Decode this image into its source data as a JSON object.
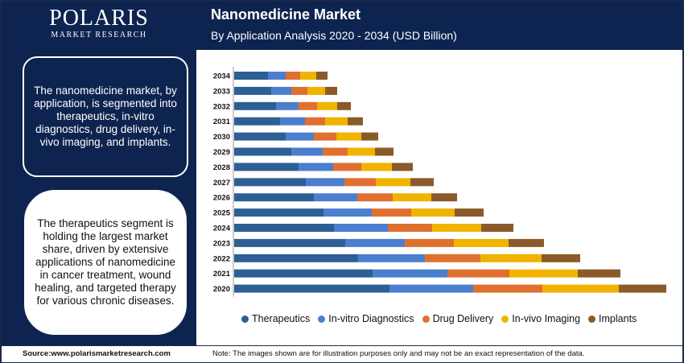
{
  "brand": {
    "name": "POLARIS",
    "sub": "MARKET RESEARCH"
  },
  "header": {
    "title": "Nanomedicine Market",
    "subtitle": "By Application Analysis 2020 - 2034 (USD Billion)"
  },
  "sidebar": {
    "text1": "The nanomedicine market, by application, is segmented into therapeutics, in-vitro diagnostics, drug delivery, in-vivo imaging, and implants.",
    "text2": "The therapeutics segment is holding the largest market share, driven by extensive applications of nanomedicine in cancer treatment, wound healing, and targeted therapy for various chronic diseases."
  },
  "footer": {
    "source": "Source:www.polarismarketresearch.com",
    "note": "Note: The images shown are for illustration purposes only and may not be an exact representation of the data."
  },
  "colors": {
    "navy": "#0e2450"
  },
  "chart_data": {
    "type": "bar",
    "orientation": "horizontal",
    "stacked": true,
    "categories": [
      "2034",
      "2033",
      "2032",
      "2031",
      "2030",
      "2029",
      "2028",
      "2027",
      "2026",
      "2025",
      "2024",
      "2023",
      "2022",
      "2021",
      "2020"
    ],
    "series": [
      {
        "name": "Therapeutics",
        "color": "#2e5f94",
        "values": [
          42,
          46,
          52,
          57,
          64,
          71,
          80,
          89,
          99,
          111,
          124,
          138,
          154,
          172,
          193
        ]
      },
      {
        "name": "In-vitro Diagnostics",
        "color": "#4a7fd0",
        "values": [
          22,
          25,
          28,
          31,
          35,
          39,
          43,
          48,
          54,
          60,
          67,
          74,
          83,
          93,
          104
        ]
      },
      {
        "name": "Drug Delivery",
        "color": "#e07030",
        "values": [
          18,
          20,
          23,
          25,
          28,
          31,
          35,
          39,
          44,
          49,
          55,
          61,
          69,
          77,
          86
        ]
      },
      {
        "name": "In-vivo Imaging",
        "color": "#f0b400",
        "values": [
          20,
          22,
          25,
          28,
          31,
          34,
          38,
          43,
          48,
          54,
          61,
          68,
          76,
          85,
          95
        ]
      },
      {
        "name": "Implants",
        "color": "#8b5a2b",
        "values": [
          14,
          15,
          17,
          19,
          21,
          23,
          26,
          29,
          32,
          36,
          40,
          44,
          48,
          53,
          59
        ]
      }
    ]
  }
}
